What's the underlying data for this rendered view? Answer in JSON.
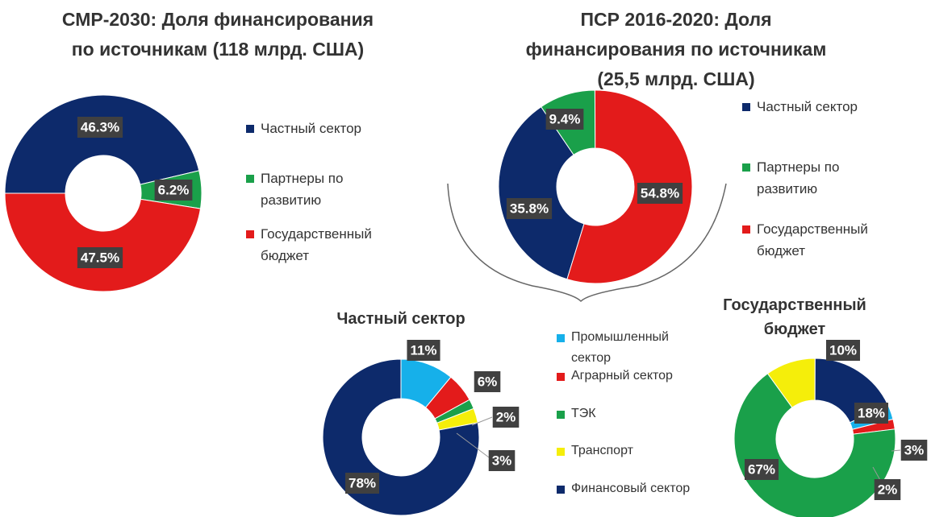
{
  "chart_data": [
    {
      "type": "donut",
      "title": "СМР-2030: Доля финансирования по источникам (118 млрд. США)",
      "categories": [
        "Частный сектор",
        "Партнеры по развитию",
        "Государственный бюджет"
      ],
      "values": [
        46.3,
        6.2,
        47.5
      ],
      "value_labels": [
        "46.3%",
        "6.2%",
        "47.5%"
      ],
      "colors": [
        "#0d2a6b",
        "#1aa04a",
        "#e31b1b"
      ]
    },
    {
      "type": "donut",
      "title": "ПСР 2016-2020: Доля финансирования по источникам (25,5 млрд. США)",
      "categories": [
        "Частный сектор",
        "Партнеры по развитию",
        "Государственный бюджет"
      ],
      "values": [
        35.8,
        9.4,
        54.8
      ],
      "value_labels": [
        "35.8%",
        "9.4%",
        "54.8%"
      ],
      "colors": [
        "#0d2a6b",
        "#1aa04a",
        "#e31b1b"
      ]
    },
    {
      "type": "donut",
      "title": "Частный сектор",
      "categories": [
        "Промышленный сектор",
        "Аграрный сектор",
        "ТЭК",
        "Транспорт",
        "Финансовый сектор"
      ],
      "values": [
        11,
        6,
        2,
        3,
        78
      ],
      "value_labels": [
        "11%",
        "6%",
        "2%",
        "3%",
        "78%"
      ],
      "colors": [
        "#16b0ea",
        "#e31b1b",
        "#1aa04a",
        "#f5ee0a",
        "#0d2a6b"
      ]
    },
    {
      "type": "donut",
      "title": "Государственный бюджет",
      "values": [
        3,
        2,
        67,
        10,
        18
      ],
      "value_labels": [
        "3%",
        "2%",
        "67%",
        "10%",
        "18%"
      ],
      "colors": [
        "#16b0ea",
        "#e31b1b",
        "#1aa04a",
        "#f5ee0a",
        "#0d2a6b"
      ]
    }
  ]
}
